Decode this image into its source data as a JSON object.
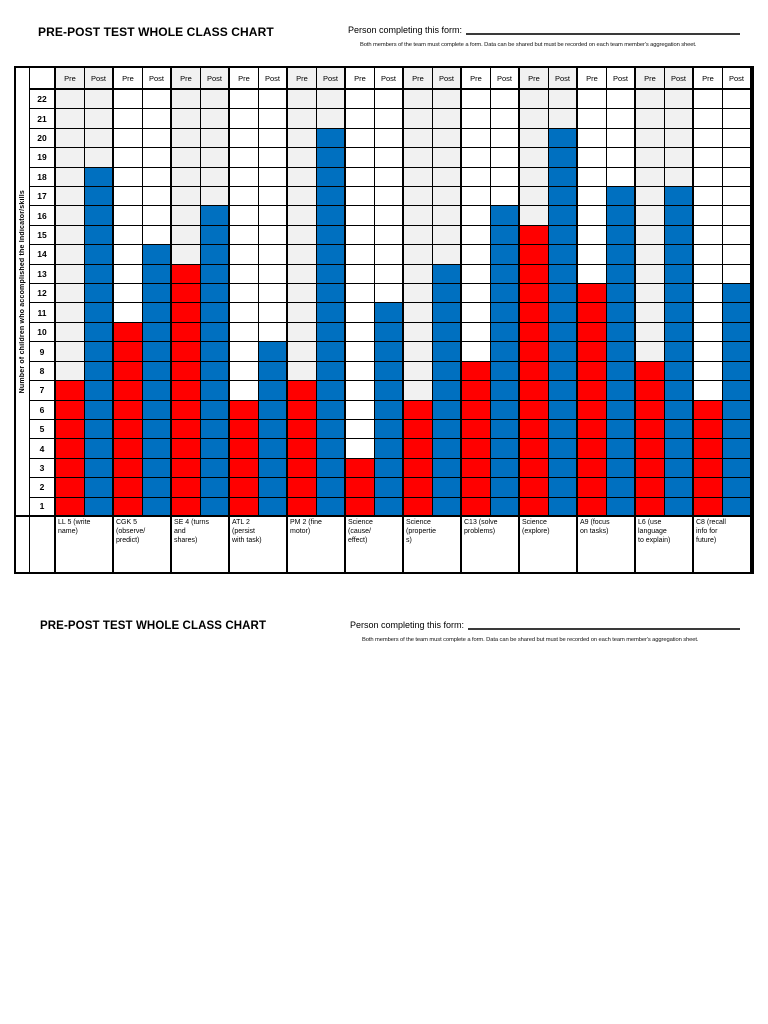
{
  "page": {
    "title": "PRE-POST TEST WHOLE CLASS CHART",
    "form_label": "Person completing this form:",
    "form_note": "Both members of the team must complete a form.  Data can be shared but must be recorded on each team member's aggregation sheet."
  },
  "chart_data": {
    "type": "bar",
    "title": "PRE-POST TEST WHOLE CLASS CHART",
    "ylabel": "Number of children who accomplished the Indicator/skills",
    "xlabel": "",
    "ylim": [
      1,
      22
    ],
    "y_ticks": [
      22,
      21,
      20,
      19,
      18,
      17,
      16,
      15,
      14,
      13,
      12,
      11,
      10,
      9,
      8,
      7,
      6,
      5,
      4,
      3,
      2,
      1
    ],
    "grid": true,
    "legend": "none",
    "series_headers": [
      "Pre",
      "Post"
    ],
    "categories": [
      "LL 5 (write\nname)",
      "CGK 5\n(observe/\npredict)",
      "SE 4 (turns\nand\nshares)",
      "ATL 2\n(persist\nwith task)",
      "PM 2 (fine\nmotor)",
      "Science\n(cause/\neffect)",
      "Science\n(propertie\ns)",
      "C13 (solve\nproblems)",
      "Science\n(explore)",
      "A9 (focus\non tasks)",
      "L6 (use\nlanguage\nto explain)",
      "C8 (recall\ninfo for\nfuture)"
    ],
    "series": [
      {
        "name": "Pre",
        "values": [
          7,
          10,
          13,
          6,
          7,
          3,
          6,
          8,
          15,
          12,
          8,
          6
        ]
      },
      {
        "name": "Post",
        "values": [
          18,
          14,
          16,
          9,
          20,
          11,
          13,
          16,
          20,
          17,
          17,
          12
        ]
      }
    ],
    "colors": {
      "pre": "#ff0000",
      "post": "#0070c0",
      "shaded_pair_bg": "#f1f1f1",
      "gridline": "#000000"
    }
  }
}
